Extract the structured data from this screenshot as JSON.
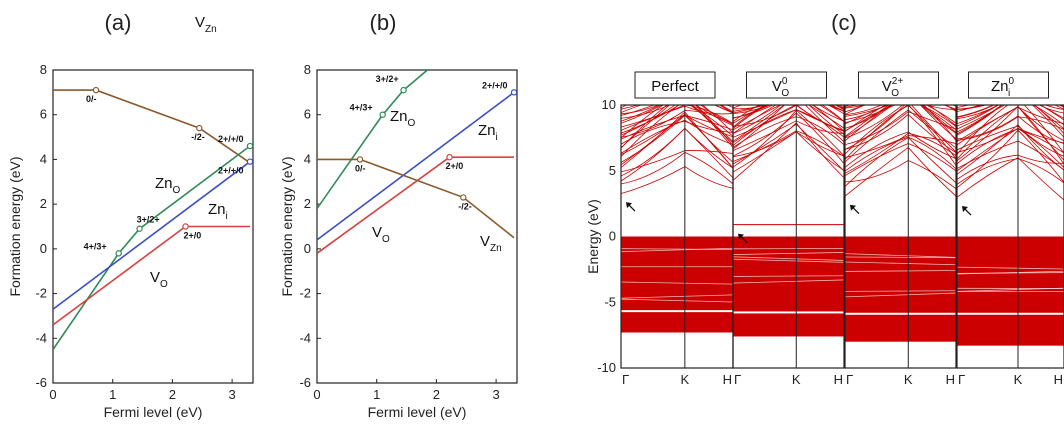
{
  "chart_data": [
    {
      "type": "line",
      "panel_label": "(a)",
      "xlabel": "Fermi level (eV)",
      "ylabel": "Formation energy (eV)",
      "xlim": [
        0,
        3.35
      ],
      "ylim": [
        -6,
        8
      ],
      "xticks": [
        0,
        1,
        2,
        3
      ],
      "yticks": [
        -6,
        -4,
        -2,
        0,
        2,
        4,
        6,
        8
      ],
      "series": [
        {
          "name": "V_Zn",
          "color": "#8b5a2b",
          "x": [
            0,
            0.72,
            2.45,
            3.3
          ],
          "y": [
            7.1,
            7.1,
            5.4,
            3.85
          ]
        },
        {
          "name": "Zn_O",
          "color": "#2e8b57",
          "x": [
            0,
            1.1,
            1.45,
            3.3
          ],
          "y": [
            -4.5,
            -0.2,
            0.9,
            4.6
          ]
        },
        {
          "name": "Zn_i",
          "color": "#3b4fc4",
          "x": [
            0,
            3.3
          ],
          "y": [
            -2.7,
            3.9
          ]
        },
        {
          "name": "V_O",
          "color": "#d94040",
          "x": [
            0,
            2.22,
            3.3
          ],
          "y": [
            -3.4,
            1.0,
            1.0
          ]
        }
      ],
      "transition_points": [
        {
          "label": "0/-",
          "x": 0.72,
          "y": 7.1,
          "color": "#8b5a2b"
        },
        {
          "label": "-/2-",
          "x": 2.45,
          "y": 5.4,
          "color": "#8b5a2b"
        },
        {
          "label": "2+/+/0",
          "x": 3.3,
          "y": 4.6,
          "color": "#2e8b57"
        },
        {
          "label": "2+/+/0",
          "x": 3.3,
          "y": 3.9,
          "color": "#3b4fc4"
        },
        {
          "label": "3+/2+",
          "x": 1.45,
          "y": 0.9,
          "color": "#2e8b57"
        },
        {
          "label": "4+/3+",
          "x": 1.1,
          "y": -0.2,
          "color": "#2e8b57"
        },
        {
          "label": "2+/0",
          "x": 2.22,
          "y": 1.0,
          "color": "#d94040"
        }
      ],
      "series_labels": [
        {
          "base": "V",
          "sub": "Zn"
        },
        {
          "base": "Zn",
          "sub": "O"
        },
        {
          "base": "Zn",
          "sub": "i"
        },
        {
          "base": "V",
          "sub": "O"
        }
      ]
    },
    {
      "type": "line",
      "panel_label": "(b)",
      "xlabel": "Fermi level (eV)",
      "ylabel": "Formation energy (eV)",
      "xlim": [
        0,
        3.35
      ],
      "ylim": [
        -6,
        8
      ],
      "xticks": [
        0,
        1,
        2,
        3
      ],
      "yticks": [
        -6,
        -4,
        -2,
        0,
        2,
        4,
        6,
        8
      ],
      "series": [
        {
          "name": "Zn_O",
          "color": "#2e8b57",
          "x": [
            0,
            1.1,
            1.45,
            1.85
          ],
          "y": [
            1.8,
            6.0,
            7.1,
            8.0
          ]
        },
        {
          "name": "Zn_i",
          "color": "#3b4fc4",
          "x": [
            0,
            3.3
          ],
          "y": [
            0.4,
            7.0
          ]
        },
        {
          "name": "V_O",
          "color": "#d94040",
          "x": [
            0,
            2.22,
            3.3
          ],
          "y": [
            -0.2,
            4.1,
            4.1
          ]
        },
        {
          "name": "V_Zn",
          "color": "#8b5a2b",
          "x": [
            0,
            0.72,
            2.45,
            3.3
          ],
          "y": [
            4.0,
            4.0,
            2.3,
            0.5
          ]
        }
      ],
      "transition_points": [
        {
          "label": "3+/2+",
          "x": 1.45,
          "y": 7.1,
          "color": "#2e8b57"
        },
        {
          "label": "4+/3+",
          "x": 1.1,
          "y": 6.0,
          "color": "#2e8b57"
        },
        {
          "label": "2+/+/0",
          "x": 3.3,
          "y": 7.0,
          "color": "#3b4fc4"
        },
        {
          "label": "0/-",
          "x": 0.72,
          "y": 4.0,
          "color": "#8b5a2b"
        },
        {
          "label": "2+/0",
          "x": 2.22,
          "y": 4.1,
          "color": "#d94040"
        },
        {
          "label": "-/2-",
          "x": 2.45,
          "y": 2.3,
          "color": "#8b5a2b"
        }
      ],
      "series_labels": [
        {
          "base": "Zn",
          "sub": "O"
        },
        {
          "base": "Zn",
          "sub": "i"
        },
        {
          "base": "V",
          "sub": "O"
        },
        {
          "base": "V",
          "sub": "Zn"
        }
      ]
    },
    {
      "type": "band_structure",
      "panel_label": "(c)",
      "ylabel": "Energy (eV)",
      "ylim": [
        -10,
        10
      ],
      "yticks": [
        -10,
        -5,
        0,
        5,
        10
      ],
      "kpoints": [
        "Γ",
        "K",
        "H"
      ],
      "color": "#cc0000",
      "valence_band_max": 0,
      "subplots": [
        {
          "title": "Perfect",
          "title_base": "Perfect",
          "sup": "",
          "sub": "",
          "conduction_min": 3.3,
          "gap_state": null,
          "bottom_block": [
            -7.3,
            -5.6
          ]
        },
        {
          "title": "V_O^0",
          "title_base": "V",
          "sub": "O",
          "sup": "0",
          "conduction_min": 4.3,
          "gap_state": 0.9,
          "bottom_block": [
            -7.6,
            -5.7
          ]
        },
        {
          "title": "V_O^2+",
          "title_base": "V",
          "sub": "O",
          "sup": "2+",
          "conduction_min": 3.1,
          "gap_state": null,
          "bottom_block": [
            -8.0,
            -5.8
          ]
        },
        {
          "title": "Zn_i^0",
          "title_base": "Zn",
          "sub": "i",
          "sup": "0",
          "conduction_min": 3.0,
          "gap_state": null,
          "bottom_block": [
            -8.3,
            -5.8
          ]
        }
      ]
    }
  ]
}
